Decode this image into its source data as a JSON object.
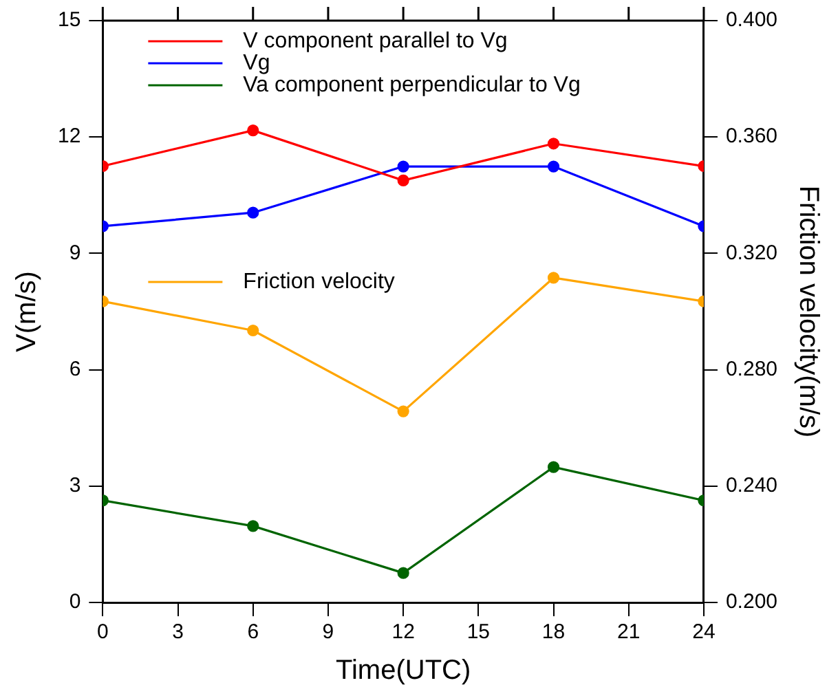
{
  "chart_data": {
    "type": "line",
    "xlabel": "Time(UTC)",
    "ylabel": "V(m/s)",
    "y2label": "Friction velocity(m/s)",
    "x": [
      0,
      6,
      12,
      18,
      24
    ],
    "xlim": [
      0,
      24
    ],
    "xticks": [
      0,
      3,
      6,
      9,
      12,
      15,
      18,
      21,
      24
    ],
    "ylim": [
      0,
      15
    ],
    "yticks": [
      0,
      3,
      6,
      9,
      12,
      15
    ],
    "y2lim": [
      0.2,
      0.4
    ],
    "y2ticks": [
      {
        "value": 0.2,
        "label": "0.200"
      },
      {
        "value": 0.24,
        "label": "0.240"
      },
      {
        "value": 0.28,
        "label": "0.280"
      },
      {
        "value": 0.32,
        "label": "0.320"
      },
      {
        "value": 0.36,
        "label": "0.360"
      },
      {
        "value": 0.4,
        "label": "0.400"
      }
    ],
    "series": [
      {
        "name": "V component parallel to Vg",
        "color": "#ff0000",
        "values": [
          11.25,
          12.17,
          10.88,
          11.83,
          11.25
        ]
      },
      {
        "name": "Vg",
        "color": "#0000ff",
        "values": [
          9.7,
          10.05,
          11.24,
          11.24,
          9.7
        ]
      },
      {
        "name": "Va component perpendicular to Vg",
        "color": "#006400",
        "values": [
          2.63,
          1.97,
          0.76,
          3.49,
          2.63
        ]
      },
      {
        "name": "Friction velocity",
        "color": "#ffa500",
        "axis": "y2",
        "values": [
          0.3035,
          0.2935,
          0.2657,
          0.3116,
          0.3035
        ]
      }
    ],
    "marker": "circle",
    "line_style": "solid",
    "grid": false,
    "legend": "top left"
  }
}
